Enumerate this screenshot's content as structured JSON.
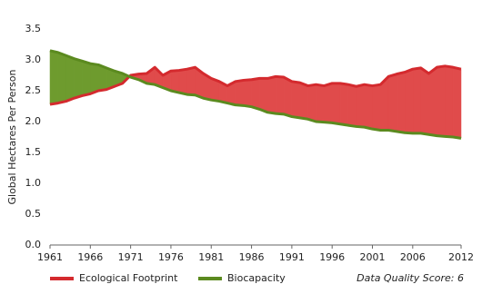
{
  "chart_data": {
    "type": "line",
    "y_label": "Global Hectares Per Person",
    "x": [
      1961,
      1962,
      1963,
      1964,
      1965,
      1966,
      1967,
      1968,
      1969,
      1970,
      1971,
      1972,
      1973,
      1974,
      1975,
      1976,
      1977,
      1978,
      1979,
      1980,
      1981,
      1982,
      1983,
      1984,
      1985,
      1986,
      1987,
      1988,
      1989,
      1990,
      1991,
      1992,
      1993,
      1994,
      1995,
      1996,
      1997,
      1998,
      1999,
      2000,
      2001,
      2002,
      2003,
      2004,
      2005,
      2006,
      2007,
      2008,
      2009,
      2010,
      2011,
      2012
    ],
    "series": [
      {
        "name": "Ecological Footprint",
        "color": "#d42a2e",
        "fill": "#e04b4b",
        "values": [
          2.28,
          2.3,
          2.33,
          2.38,
          2.42,
          2.45,
          2.5,
          2.52,
          2.57,
          2.62,
          2.75,
          2.77,
          2.78,
          2.88,
          2.75,
          2.82,
          2.83,
          2.85,
          2.88,
          2.78,
          2.7,
          2.65,
          2.58,
          2.65,
          2.67,
          2.68,
          2.7,
          2.7,
          2.73,
          2.72,
          2.65,
          2.63,
          2.58,
          2.6,
          2.58,
          2.62,
          2.62,
          2.6,
          2.57,
          2.6,
          2.58,
          2.6,
          2.73,
          2.77,
          2.8,
          2.85,
          2.87,
          2.78,
          2.88,
          2.9,
          2.88,
          2.85
        ]
      },
      {
        "name": "Biocapacity",
        "color": "#5b8a1f",
        "fill": "#6e9b2e",
        "values": [
          3.15,
          3.12,
          3.07,
          3.02,
          2.98,
          2.94,
          2.92,
          2.87,
          2.82,
          2.78,
          2.72,
          2.68,
          2.62,
          2.6,
          2.55,
          2.5,
          2.47,
          2.44,
          2.43,
          2.38,
          2.35,
          2.33,
          2.3,
          2.27,
          2.26,
          2.24,
          2.2,
          2.15,
          2.13,
          2.12,
          2.08,
          2.06,
          2.04,
          2.0,
          1.99,
          1.98,
          1.96,
          1.94,
          1.92,
          1.91,
          1.88,
          1.86,
          1.86,
          1.84,
          1.82,
          1.81,
          1.81,
          1.79,
          1.77,
          1.76,
          1.75,
          1.73
        ]
      }
    ],
    "xlim": [
      1961,
      2012
    ],
    "xticks": [
      1961,
      1966,
      1971,
      1976,
      1981,
      1986,
      1991,
      1996,
      2001,
      2006,
      2012
    ],
    "ylim": [
      0,
      3.5
    ],
    "yticks": [
      {
        "value": 0,
        "label": "0.0"
      },
      {
        "value": 0.5,
        "label": "0.5"
      },
      {
        "value": 1,
        "label": "1.0"
      },
      {
        "value": 1.5,
        "label": "1.5"
      },
      {
        "value": 2,
        "label": "2.0"
      },
      {
        "value": 2.5,
        "label": "2.5"
      },
      {
        "value": 3,
        "label": "3.0"
      },
      {
        "value": 3.5,
        "label": "3.5"
      }
    ],
    "annotation": "Data Quality Score: 6"
  }
}
